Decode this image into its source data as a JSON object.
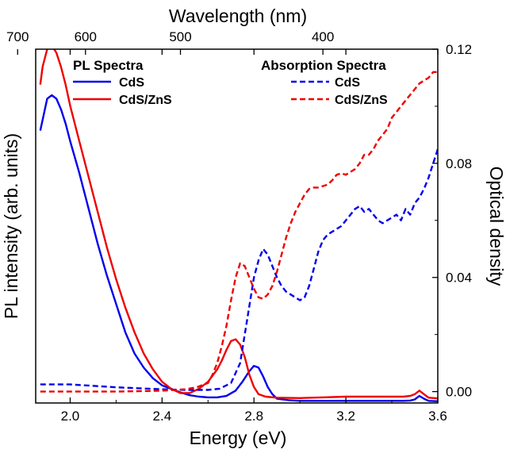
{
  "chart_data": {
    "type": "line",
    "xlabel": "Energy (eV)",
    "ylabel_left": "PL intensity (arb. units)",
    "ylabel_right": "Optical density",
    "x2label": "Wavelength (nm)",
    "xlim": [
      1.85,
      3.6
    ],
    "y_left_lim": [
      0,
      1.0
    ],
    "y_right_lim": [
      -0.004,
      0.12
    ],
    "x_ticks": [
      2.0,
      2.4,
      2.8,
      3.2,
      3.6
    ],
    "x_tick_labels": [
      "2.0",
      "2.4",
      "2.8",
      "3.2",
      "3.6"
    ],
    "y_right_ticks": [
      0.0,
      0.04,
      0.08,
      0.12
    ],
    "y_right_tick_labels": [
      "0.00",
      "0.04",
      "0.08",
      "0.12"
    ],
    "x2_ticks_nm": [
      700,
      600,
      500,
      400
    ],
    "x2_tick_labels": [
      "700",
      "600",
      "500",
      "400"
    ],
    "legends": [
      {
        "title": "PL Spectra",
        "entries": [
          {
            "label": "CdS",
            "color": "#0000ee",
            "style": "solid"
          },
          {
            "label": "CdS/ZnS",
            "color": "#ee0000",
            "style": "solid"
          }
        ]
      },
      {
        "title": "Absorption Spectra",
        "entries": [
          {
            "label": "CdS",
            "color": "#0000ee",
            "style": "dashed"
          },
          {
            "label": "CdS/ZnS",
            "color": "#ee0000",
            "style": "dashed"
          }
        ]
      }
    ],
    "series": [
      {
        "key": "pl_cds",
        "axis": "left",
        "color": "#0000ee",
        "style": "solid",
        "x": [
          1.87,
          1.88,
          1.9,
          1.92,
          1.94,
          1.96,
          1.98,
          2.0,
          2.04,
          2.08,
          2.12,
          2.16,
          2.2,
          2.24,
          2.28,
          2.32,
          2.36,
          2.4,
          2.44,
          2.48,
          2.52,
          2.56,
          2.6,
          2.64,
          2.68,
          2.72,
          2.75,
          2.78,
          2.8,
          2.82,
          2.84,
          2.86,
          2.88,
          2.9,
          2.95,
          3.0,
          3.1,
          3.2,
          3.3,
          3.4,
          3.45,
          3.48,
          3.5,
          3.52,
          3.54,
          3.56,
          3.6
        ],
        "y": [
          0.77,
          0.8,
          0.86,
          0.87,
          0.86,
          0.83,
          0.79,
          0.74,
          0.65,
          0.55,
          0.45,
          0.36,
          0.28,
          0.2,
          0.14,
          0.1,
          0.07,
          0.05,
          0.04,
          0.03,
          0.022,
          0.018,
          0.016,
          0.016,
          0.02,
          0.035,
          0.06,
          0.09,
          0.105,
          0.1,
          0.075,
          0.045,
          0.025,
          0.012,
          0.008,
          0.006,
          0.006,
          0.006,
          0.006,
          0.006,
          0.006,
          0.007,
          0.01,
          0.02,
          0.012,
          0.006,
          0.005
        ]
      },
      {
        "key": "pl_cdszns",
        "axis": "left",
        "color": "#ee0000",
        "style": "solid",
        "x": [
          1.87,
          1.88,
          1.9,
          1.92,
          1.94,
          1.96,
          1.98,
          2.0,
          2.04,
          2.08,
          2.12,
          2.16,
          2.2,
          2.24,
          2.28,
          2.32,
          2.36,
          2.4,
          2.44,
          2.48,
          2.52,
          2.56,
          2.6,
          2.64,
          2.66,
          2.68,
          2.7,
          2.72,
          2.74,
          2.76,
          2.78,
          2.8,
          2.82,
          2.85,
          2.9,
          3.0,
          3.1,
          3.2,
          3.3,
          3.4,
          3.45,
          3.48,
          3.5,
          3.52,
          3.54,
          3.56,
          3.6
        ],
        "y": [
          0.9,
          0.95,
          1.0,
          1.01,
          0.99,
          0.95,
          0.9,
          0.84,
          0.74,
          0.64,
          0.54,
          0.44,
          0.35,
          0.27,
          0.2,
          0.14,
          0.095,
          0.06,
          0.04,
          0.028,
          0.028,
          0.04,
          0.06,
          0.095,
          0.12,
          0.15,
          0.175,
          0.18,
          0.165,
          0.13,
          0.08,
          0.045,
          0.025,
          0.018,
          0.015,
          0.014,
          0.016,
          0.018,
          0.018,
          0.018,
          0.018,
          0.02,
          0.025,
          0.035,
          0.025,
          0.015,
          0.013
        ]
      },
      {
        "key": "abs_cds",
        "axis": "right",
        "color": "#0000ee",
        "style": "dashed",
        "x": [
          1.87,
          2.0,
          2.2,
          2.4,
          2.5,
          2.6,
          2.65,
          2.7,
          2.74,
          2.76,
          2.78,
          2.8,
          2.82,
          2.84,
          2.86,
          2.88,
          2.9,
          2.92,
          2.94,
          2.96,
          2.98,
          3.0,
          3.02,
          3.04,
          3.06,
          3.08,
          3.1,
          3.12,
          3.14,
          3.16,
          3.18,
          3.2,
          3.22,
          3.24,
          3.26,
          3.28,
          3.3,
          3.32,
          3.34,
          3.36,
          3.38,
          3.4,
          3.42,
          3.44,
          3.46,
          3.48,
          3.5,
          3.52,
          3.54,
          3.56,
          3.58,
          3.6
        ],
        "y": [
          0.0025,
          0.0025,
          0.0015,
          0.0008,
          0.0006,
          0.0006,
          0.001,
          0.003,
          0.01,
          0.02,
          0.03,
          0.04,
          0.046,
          0.05,
          0.048,
          0.044,
          0.04,
          0.037,
          0.035,
          0.034,
          0.033,
          0.032,
          0.033,
          0.037,
          0.043,
          0.049,
          0.053,
          0.055,
          0.056,
          0.057,
          0.058,
          0.06,
          0.062,
          0.064,
          0.065,
          0.063,
          0.064,
          0.062,
          0.06,
          0.059,
          0.06,
          0.061,
          0.062,
          0.06,
          0.064,
          0.062,
          0.066,
          0.068,
          0.071,
          0.075,
          0.08,
          0.085
        ]
      },
      {
        "key": "abs_cdszns",
        "axis": "right",
        "color": "#ee0000",
        "style": "dashed",
        "x": [
          1.87,
          2.0,
          2.2,
          2.4,
          2.5,
          2.55,
          2.6,
          2.62,
          2.64,
          2.66,
          2.68,
          2.7,
          2.72,
          2.74,
          2.76,
          2.78,
          2.8,
          2.82,
          2.84,
          2.86,
          2.88,
          2.9,
          2.92,
          2.94,
          2.96,
          2.98,
          3.0,
          3.02,
          3.04,
          3.06,
          3.08,
          3.1,
          3.12,
          3.14,
          3.16,
          3.18,
          3.2,
          3.22,
          3.24,
          3.26,
          3.28,
          3.3,
          3.32,
          3.34,
          3.36,
          3.38,
          3.4,
          3.42,
          3.44,
          3.46,
          3.48,
          3.5,
          3.52,
          3.54,
          3.56,
          3.58,
          3.6
        ],
        "y": [
          0.0,
          0.0,
          0.0,
          0.0003,
          0.0008,
          0.0015,
          0.003,
          0.006,
          0.01,
          0.016,
          0.023,
          0.032,
          0.04,
          0.045,
          0.044,
          0.04,
          0.036,
          0.033,
          0.0325,
          0.034,
          0.037,
          0.042,
          0.048,
          0.054,
          0.059,
          0.063,
          0.066,
          0.069,
          0.071,
          0.0715,
          0.0715,
          0.072,
          0.0725,
          0.074,
          0.076,
          0.0765,
          0.076,
          0.077,
          0.078,
          0.08,
          0.083,
          0.083,
          0.085,
          0.088,
          0.09,
          0.092,
          0.096,
          0.098,
          0.1,
          0.102,
          0.104,
          0.106,
          0.108,
          0.109,
          0.11,
          0.112,
          0.112
        ]
      }
    ]
  }
}
